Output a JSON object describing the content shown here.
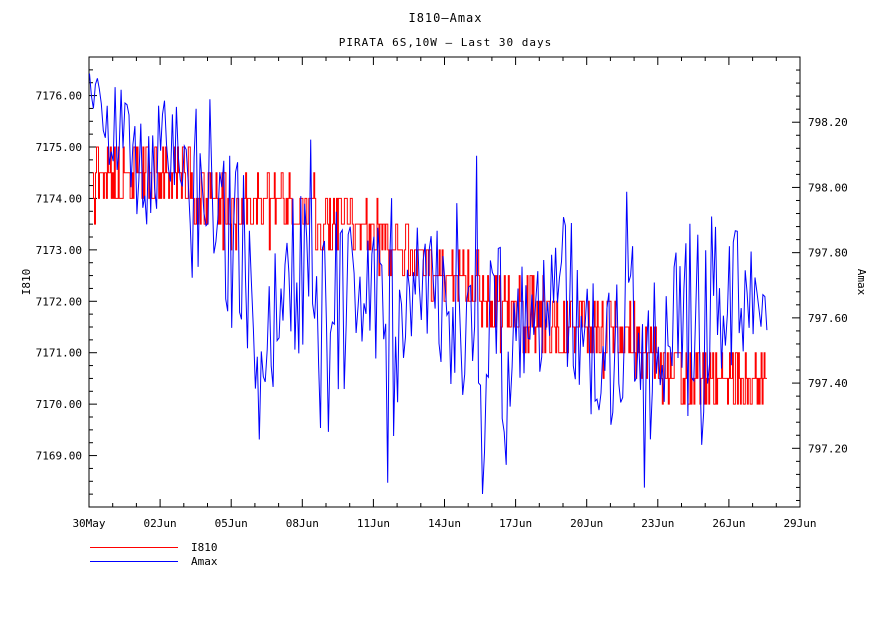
{
  "figure": {
    "background": "#ffffff",
    "text_color": "#000000"
  },
  "chart_data": {
    "type": "line",
    "title": "I810–Amax",
    "subtitle": "PIRATA 6S,10W – Last 30 days",
    "grid": "off",
    "frame": "box with inward ticks",
    "x_axis": {
      "range_days": [
        0,
        30
      ],
      "start_label": "30May",
      "major_tick_days": [
        0,
        3,
        6,
        9,
        12,
        15,
        18,
        21,
        24,
        27,
        30
      ],
      "minor_step_days": 1,
      "tick_labels": [
        "30May",
        "02Jun",
        "05Jun",
        "08Jun",
        "11Jun",
        "14Jun",
        "17Jun",
        "20Jun",
        "23Jun",
        "26Jun",
        "29Jun"
      ]
    },
    "left_axis": {
      "label": "I810",
      "range": [
        7168.0,
        7176.75
      ],
      "tick_values": [
        7169,
        7170,
        7171,
        7172,
        7173,
        7174,
        7175,
        7176
      ],
      "tick_labels": [
        "7169.00",
        "7170.00",
        "7171.00",
        "7172.00",
        "7173.00",
        "7174.00",
        "7175.00",
        "7176.00"
      ],
      "minor_step": 0.25
    },
    "right_axis": {
      "label": "Amax",
      "range": [
        797.02,
        798.4
      ],
      "tick_values": [
        797.2,
        797.4,
        797.6,
        797.8,
        798.0,
        798.2
      ],
      "tick_labels": [
        "797.20",
        "797.40",
        "797.60",
        "797.80",
        "798.00",
        "798.20"
      ],
      "minor_step": 0.04
    },
    "legend": {
      "entries": [
        {
          "label": "I810",
          "color": "#ff0000"
        },
        {
          "label": "Amax",
          "color": "#0000ff"
        }
      ]
    },
    "series": [
      {
        "name": "I810",
        "color": "#ff0000",
        "axis": "left",
        "style": "step",
        "quantize": 0.5,
        "seed": 13,
        "samples_per_day": 24,
        "x_start": 0.15,
        "x_end": 28.6,
        "spike_prob": 0.03,
        "spike_scale": 1.2,
        "clamp": [
          7169.95,
          7175.05
        ],
        "trend": [
          [
            0.15,
            7174.5,
            0.55
          ],
          [
            1,
            7174.5,
            0.55
          ],
          [
            2,
            7174.45,
            0.55
          ],
          [
            3,
            7174.4,
            0.6
          ],
          [
            4,
            7174.35,
            0.65
          ],
          [
            4.6,
            7174.1,
            0.6
          ],
          [
            5.5,
            7173.8,
            0.7
          ],
          [
            6.5,
            7173.7,
            0.7
          ],
          [
            7.5,
            7173.9,
            0.5
          ],
          [
            8.5,
            7173.95,
            0.5
          ],
          [
            9.6,
            7173.75,
            0.8
          ],
          [
            10.5,
            7173.5,
            0.55
          ],
          [
            11.5,
            7173.5,
            0.55
          ],
          [
            12.3,
            7173.2,
            0.55
          ],
          [
            13.5,
            7172.9,
            0.55
          ],
          [
            14.7,
            7172.55,
            0.55
          ],
          [
            16,
            7172.4,
            0.55
          ],
          [
            17.3,
            7172.0,
            0.6
          ],
          [
            18.9,
            7171.6,
            0.8
          ],
          [
            20,
            7171.5,
            0.55
          ],
          [
            21.5,
            7171.45,
            0.55
          ],
          [
            23,
            7171.2,
            0.6
          ],
          [
            24,
            7170.9,
            0.7
          ],
          [
            25,
            7170.6,
            0.6
          ],
          [
            26,
            7170.5,
            0.55
          ],
          [
            27.5,
            7170.45,
            0.55
          ],
          [
            28.6,
            7170.4,
            0.45
          ]
        ]
      },
      {
        "name": "Amax",
        "color": "#0000ff",
        "axis": "right",
        "style": "line",
        "quantize": 0,
        "seed": 5,
        "samples_per_day": 12,
        "x_start": 0.02,
        "x_end": 28.6,
        "spike_prob": 0.09,
        "spike_scale": 1.4,
        "clamp": [
          797.06,
          798.36
        ],
        "trend": [
          [
            0.02,
            798.33,
            0.05
          ],
          [
            0.7,
            798.2,
            0.12
          ],
          [
            1.5,
            798.15,
            0.15
          ],
          [
            2.3,
            798.05,
            0.18
          ],
          [
            3,
            798.1,
            0.17
          ],
          [
            3.7,
            798.15,
            0.16
          ],
          [
            4.4,
            797.9,
            0.22
          ],
          [
            5.2,
            798.05,
            0.25
          ],
          [
            6,
            797.85,
            0.3
          ],
          [
            7,
            797.6,
            0.35
          ],
          [
            7.4,
            797.5,
            0.4
          ],
          [
            8,
            797.75,
            0.25
          ],
          [
            9,
            797.7,
            0.28
          ],
          [
            10.2,
            797.55,
            0.38
          ],
          [
            11,
            797.7,
            0.25
          ],
          [
            12,
            797.7,
            0.25
          ],
          [
            12.9,
            797.5,
            0.38
          ],
          [
            13.6,
            797.65,
            0.22
          ],
          [
            14.3,
            797.75,
            0.22
          ],
          [
            15.2,
            797.6,
            0.22
          ],
          [
            16.2,
            797.5,
            0.28
          ],
          [
            17.4,
            797.45,
            0.38
          ],
          [
            18.3,
            797.55,
            0.25
          ],
          [
            19.2,
            797.65,
            0.22
          ],
          [
            20.2,
            797.68,
            0.26
          ],
          [
            21.2,
            797.55,
            0.26
          ],
          [
            22.2,
            797.5,
            0.28
          ],
          [
            22.95,
            797.8,
            0.35
          ],
          [
            23.4,
            797.35,
            0.3
          ],
          [
            24.2,
            797.55,
            0.26
          ],
          [
            25.2,
            797.7,
            0.22
          ],
          [
            26.3,
            797.5,
            0.32
          ],
          [
            27.2,
            797.7,
            0.22
          ],
          [
            28,
            797.65,
            0.15
          ],
          [
            28.6,
            797.62,
            0.08
          ]
        ]
      }
    ]
  }
}
